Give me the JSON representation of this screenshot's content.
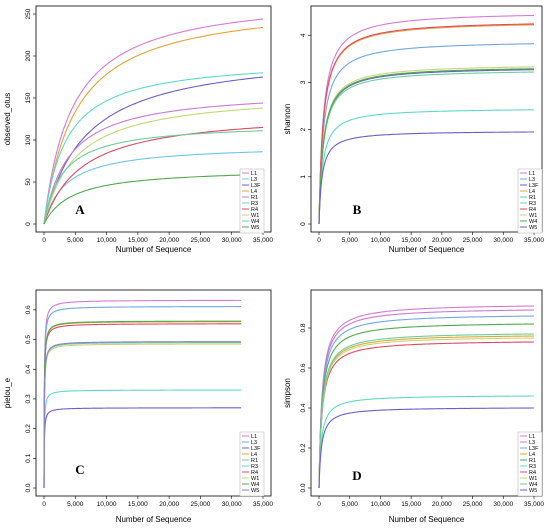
{
  "chart_data": [
    {
      "type": "line",
      "panel_label": "A",
      "xlabel": "Number of Sequence",
      "ylabel": "observed_otus",
      "xticks": [
        0,
        5000,
        10000,
        15000,
        20000,
        25000,
        30000,
        35000
      ],
      "xtick_labels": [
        "0",
        "5,000",
        "10,000",
        "15,000",
        "20,000",
        "25,000",
        "30,000",
        "35,000"
      ],
      "yticks": [
        0,
        50,
        100,
        150,
        200,
        250
      ],
      "xlim": [
        0,
        35000
      ],
      "ylim": [
        0,
        250
      ],
      "x_end": 35000,
      "legend": "right",
      "series": [
        {
          "name": "L1",
          "final": 244,
          "k": 4500,
          "color": "#d77ad2"
        },
        {
          "name": "L3",
          "final": 86,
          "k": 3500,
          "color": "#6fc6e2"
        },
        {
          "name": "L3F",
          "final": 175,
          "k": 6500,
          "color": "#6a5fc9"
        },
        {
          "name": "L4",
          "final": 234,
          "k": 5000,
          "color": "#e3a437"
        },
        {
          "name": "R1",
          "final": 144,
          "k": 4000,
          "color": "#c97ad0"
        },
        {
          "name": "R3",
          "final": 180,
          "k": 3500,
          "color": "#5fd9c7"
        },
        {
          "name": "R4",
          "final": 115,
          "k": 6000,
          "color": "#e04a63"
        },
        {
          "name": "W1",
          "final": 138,
          "k": 5000,
          "color": "#c6d67a"
        },
        {
          "name": "W4",
          "final": 111,
          "k": 3000,
          "color": "#6ccf9c"
        },
        {
          "name": "W5",
          "final": 59,
          "k": 4500,
          "color": "#4faa4f"
        }
      ]
    },
    {
      "type": "line",
      "panel_label": "B",
      "xlabel": "Number of Sequence",
      "ylabel": "shannon",
      "xticks": [
        0,
        5000,
        10000,
        15000,
        20000,
        25000,
        30000,
        35000
      ],
      "xtick_labels": [
        "0",
        "5,000",
        "10,000",
        "15,000",
        "20,000",
        "25,000",
        "30,000",
        "35,000"
      ],
      "yticks": [
        0,
        1,
        2,
        3,
        4
      ],
      "xlim": [
        0,
        35000
      ],
      "ylim": [
        0,
        4.45
      ],
      "x_end": 35000,
      "legend": "right",
      "series": [
        {
          "name": "L1",
          "final": 4.42,
          "k": 700,
          "color": "#d77ad2"
        },
        {
          "name": "L3",
          "final": 3.82,
          "k": 700,
          "color": "#6fa8e2"
        },
        {
          "name": "L3F",
          "final": 3.27,
          "k": 700,
          "color": "#6a5fc9"
        },
        {
          "name": "L4",
          "final": 4.22,
          "k": 700,
          "color": "#e3a437"
        },
        {
          "name": "R1",
          "final": 3.22,
          "k": 700,
          "color": "#6ccf9c"
        },
        {
          "name": "R3",
          "final": 2.42,
          "k": 600,
          "color": "#5fd9c7"
        },
        {
          "name": "R4",
          "final": 4.24,
          "k": 700,
          "color": "#e04a63"
        },
        {
          "name": "W1",
          "final": 3.33,
          "k": 700,
          "color": "#c6d67a"
        },
        {
          "name": "W4",
          "final": 3.29,
          "k": 700,
          "color": "#4faa4f"
        },
        {
          "name": "W5",
          "final": 1.95,
          "k": 500,
          "color": "#6a5fc9"
        }
      ]
    },
    {
      "type": "line",
      "panel_label": "C",
      "xlabel": "Number of Sequence",
      "ylabel": "pielou_e",
      "xticks": [
        0,
        5000,
        10000,
        15000,
        20000,
        25000,
        30000,
        35000
      ],
      "xtick_labels": [
        "0",
        "5,000",
        "10,000",
        "15,000",
        "20,000",
        "25,000",
        "30,000",
        "35,000"
      ],
      "yticks": [
        0.0,
        0.1,
        0.2,
        0.3,
        0.4,
        0.5,
        0.6
      ],
      "ytick_labels": [
        "0.0",
        "0.1",
        "0.2",
        "0.3",
        "0.4",
        "0.5",
        "0.6"
      ],
      "xlim": [
        0,
        35000
      ],
      "ylim": [
        0,
        0.64
      ],
      "x_end": 31500,
      "legend": "right",
      "series": [
        {
          "name": "L1",
          "final": 0.632,
          "k": 50,
          "color": "#d77ad2"
        },
        {
          "name": "L3",
          "final": 0.611,
          "k": 50,
          "color": "#6fa8e2"
        },
        {
          "name": "L3F",
          "final": 0.27,
          "k": 50,
          "color": "#6a5fc9"
        },
        {
          "name": "L4",
          "final": 0.56,
          "k": 50,
          "color": "#e3a437"
        },
        {
          "name": "R1",
          "final": 0.49,
          "k": 50,
          "color": "#6ccf9c"
        },
        {
          "name": "R3",
          "final": 0.33,
          "k": 50,
          "color": "#5fd9c7"
        },
        {
          "name": "R4",
          "final": 0.553,
          "k": 50,
          "color": "#e04a63"
        },
        {
          "name": "W1",
          "final": 0.485,
          "k": 50,
          "color": "#c6d67a"
        },
        {
          "name": "W4",
          "final": 0.562,
          "k": 50,
          "color": "#4faa4f"
        },
        {
          "name": "W5",
          "final": 0.493,
          "k": 50,
          "color": "#8f7fd0"
        }
      ]
    },
    {
      "type": "line",
      "panel_label": "D",
      "xlabel": "Number of Sequence",
      "ylabel": "simpson",
      "xticks": [
        0,
        5000,
        10000,
        15000,
        20000,
        25000,
        30000,
        35000
      ],
      "xtick_labels": [
        "0",
        "5,000",
        "10,000",
        "15,000",
        "20,000",
        "25,000",
        "30,000",
        "35,000"
      ],
      "yticks": [
        0.0,
        0.2,
        0.4,
        0.6,
        0.8
      ],
      "ytick_labels": [
        "0.0",
        "0.2",
        "0.4",
        "0.6",
        "0.8"
      ],
      "xlim": [
        0,
        35000
      ],
      "ylim": [
        0,
        0.95
      ],
      "x_end": 35000,
      "legend": "right",
      "series": [
        {
          "name": "L1",
          "final": 0.91,
          "k": 500,
          "color": "#d77ad2"
        },
        {
          "name": "L3",
          "final": 0.89,
          "k": 500,
          "color": "#c97ad0"
        },
        {
          "name": "L3F",
          "final": 0.86,
          "k": 500,
          "color": "#6fa8e2"
        },
        {
          "name": "L4",
          "final": 0.76,
          "k": 500,
          "color": "#e3a437"
        },
        {
          "name": "R1",
          "final": 0.82,
          "k": 500,
          "color": "#4faa4f"
        },
        {
          "name": "R3",
          "final": 0.46,
          "k": 400,
          "color": "#5fd9c7"
        },
        {
          "name": "R4",
          "final": 0.73,
          "k": 500,
          "color": "#e04a63"
        },
        {
          "name": "W1",
          "final": 0.75,
          "k": 500,
          "color": "#c6d67a"
        },
        {
          "name": "W4",
          "final": 0.77,
          "k": 500,
          "color": "#6ccf9c"
        },
        {
          "name": "W5",
          "final": 0.4,
          "k": 400,
          "color": "#6a5fc9"
        }
      ]
    }
  ]
}
